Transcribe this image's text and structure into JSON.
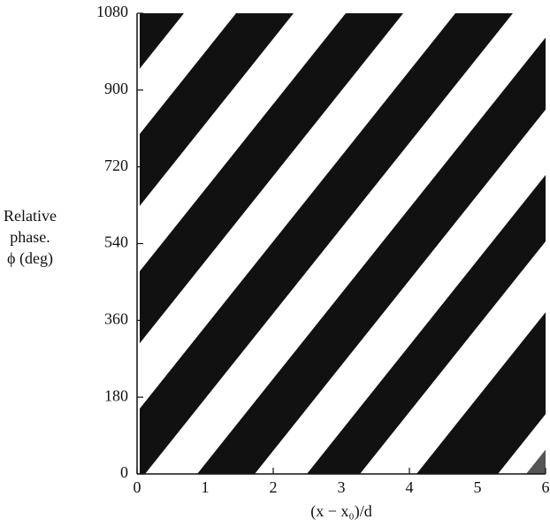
{
  "chart_data": {
    "type": "image",
    "x_label": "(x − x₀)/d",
    "y_label": [
      "Relative",
      "phase.",
      "ϕ (deg)"
    ],
    "xlim": [
      0,
      6
    ],
    "xticks": [
      0,
      1,
      2,
      3,
      4,
      5,
      6
    ],
    "ylim": [
      0,
      1080
    ],
    "yticks": [
      0,
      180,
      360,
      540,
      720,
      900,
      1080
    ]
  }
}
